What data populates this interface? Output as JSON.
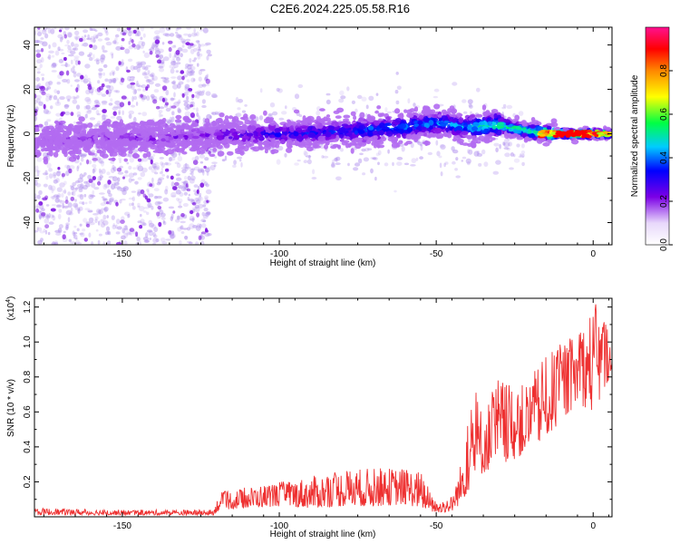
{
  "title": "C2E6.2024.225.05.58.R16",
  "chart_data": [
    {
      "type": "heatmap",
      "xlabel": "Height of straight line (km)",
      "ylabel": "Frequency (Hz)",
      "xlim": [
        -178,
        6
      ],
      "ylim": [
        -50,
        48
      ],
      "x_ticks": [
        -150,
        -100,
        -50,
        0
      ],
      "y_ticks": [
        -40,
        -20,
        0,
        20,
        40
      ],
      "colorbar": {
        "label": "Normalized spectral amplitude",
        "range": [
          0,
          1
        ],
        "ticks": [
          0.0,
          0.2,
          0.4,
          0.6,
          0.8
        ],
        "colors": [
          "#ffffff",
          "#7b00e6",
          "#0000ff",
          "#00ccff",
          "#00ff44",
          "#ffff00",
          "#ff8800",
          "#ff0000",
          "#ff1090"
        ]
      },
      "ridge": {
        "x": [
          -178,
          -150,
          -125,
          -100,
          -80,
          -60,
          -50,
          -40,
          -30,
          -20,
          -10,
          0,
          6
        ],
        "freq": [
          -3,
          -2,
          -1,
          0,
          1,
          3,
          5,
          3,
          4,
          1,
          0,
          0,
          0
        ],
        "amplitude": [
          0.15,
          0.18,
          0.2,
          0.3,
          0.35,
          0.42,
          0.4,
          0.45,
          0.55,
          0.55,
          0.85,
          0.9,
          0.6
        ]
      }
    },
    {
      "type": "line",
      "xlabel": "Height of straight line (km)",
      "ylabel": "SNR (10 * v/v)",
      "y_multiplier": "(x10",
      "y_multiplier_exp": "4",
      "y_multiplier_close": ")",
      "xlim": [
        -178,
        6
      ],
      "ylim": [
        0,
        1.25
      ],
      "x_ticks": [
        -150,
        -100,
        -50,
        0
      ],
      "y_ticks": [
        0.2,
        0.4,
        0.6,
        0.8,
        1.0,
        1.2
      ],
      "color": "#ee3030",
      "envelope": {
        "x": [
          -178,
          -150,
          -121,
          -119,
          -110,
          -100,
          -90,
          -80,
          -70,
          -60,
          -55,
          -50,
          -45,
          -42,
          -38,
          -35,
          -30,
          -25,
          -20,
          -15,
          -10,
          -5,
          -2,
          0,
          3,
          6
        ],
        "low": [
          0.01,
          0.01,
          0.01,
          0.04,
          0.05,
          0.06,
          0.05,
          0.06,
          0.06,
          0.07,
          0.05,
          0.02,
          0.03,
          0.08,
          0.2,
          0.25,
          0.3,
          0.33,
          0.38,
          0.45,
          0.55,
          0.65,
          0.62,
          0.6,
          0.68,
          0.85
        ],
        "high": [
          0.05,
          0.04,
          0.04,
          0.14,
          0.17,
          0.2,
          0.23,
          0.27,
          0.28,
          0.28,
          0.26,
          0.08,
          0.12,
          0.32,
          0.75,
          0.6,
          0.82,
          0.72,
          0.8,
          0.92,
          1.0,
          1.05,
          1.15,
          1.22,
          1.22,
          1.0
        ]
      }
    }
  ]
}
